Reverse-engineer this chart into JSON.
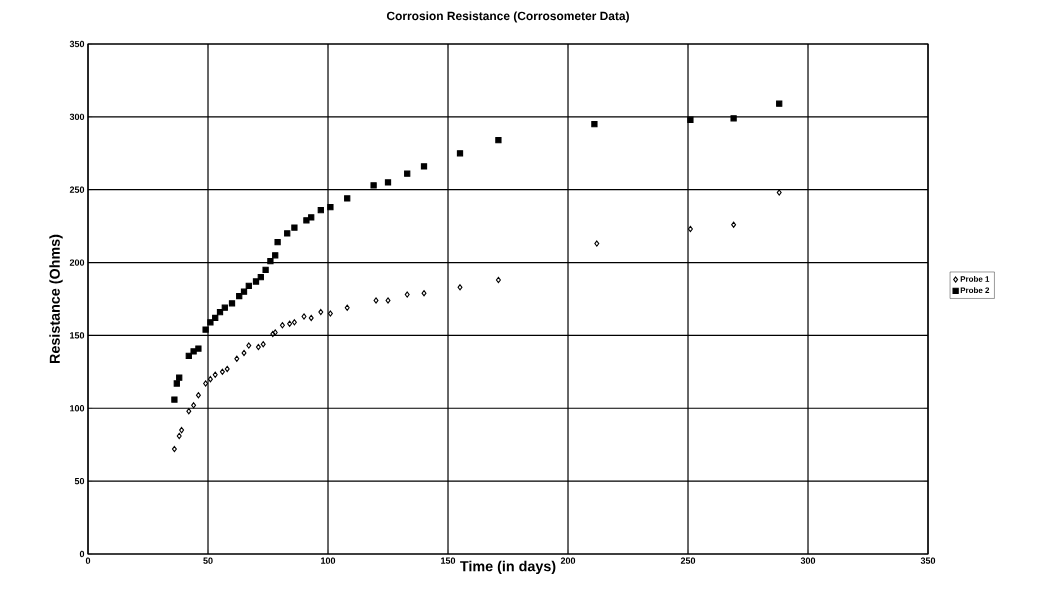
{
  "chart_data": {
    "type": "scatter",
    "title": "Corrosion Resistance (Corrosometer Data)",
    "xlabel": "Time (in days)",
    "ylabel": "Resistance (Ohms)",
    "xlim": [
      0,
      350
    ],
    "ylim": [
      0,
      350
    ],
    "xticks": [
      0,
      50,
      100,
      150,
      200,
      250,
      300,
      350
    ],
    "yticks": [
      0,
      50,
      100,
      150,
      200,
      250,
      300,
      350
    ],
    "grid": true,
    "legend": "right",
    "series": [
      {
        "name": "Probe 1",
        "color": "#000000",
        "marker": "diamond",
        "x": [
          36,
          38,
          39,
          42,
          44,
          46,
          49,
          51,
          53,
          56,
          58,
          62,
          65,
          67,
          71,
          73,
          77,
          78,
          81,
          84,
          86,
          90,
          93,
          97,
          101,
          108,
          120,
          125,
          133,
          140,
          155,
          171,
          212,
          251,
          269,
          288
        ],
        "values": [
          72,
          81,
          85,
          98,
          102,
          109,
          117,
          120,
          123,
          125,
          127,
          134,
          138,
          143,
          142,
          144,
          151,
          152,
          157,
          158,
          159,
          163,
          162,
          166,
          165,
          169,
          174,
          174,
          178,
          179,
          183,
          188,
          213,
          223,
          226,
          248
        ]
      },
      {
        "name": "Probe 2",
        "color": "#000000",
        "marker": "square",
        "x": [
          36,
          37,
          38,
          42,
          44,
          46,
          49,
          51,
          53,
          55,
          57,
          60,
          63,
          65,
          67,
          70,
          72,
          74,
          76,
          78,
          79,
          83,
          86,
          91,
          93,
          97,
          101,
          108,
          119,
          125,
          133,
          140,
          155,
          171,
          211,
          251,
          269,
          288
        ],
        "values": [
          106,
          117,
          121,
          136,
          139,
          141,
          154,
          159,
          162,
          166,
          169,
          172,
          177,
          180,
          184,
          187,
          190,
          195,
          201,
          205,
          214,
          220,
          224,
          229,
          231,
          236,
          238,
          244,
          253,
          255,
          261,
          266,
          275,
          284,
          295,
          298,
          299,
          309
        ]
      }
    ]
  }
}
